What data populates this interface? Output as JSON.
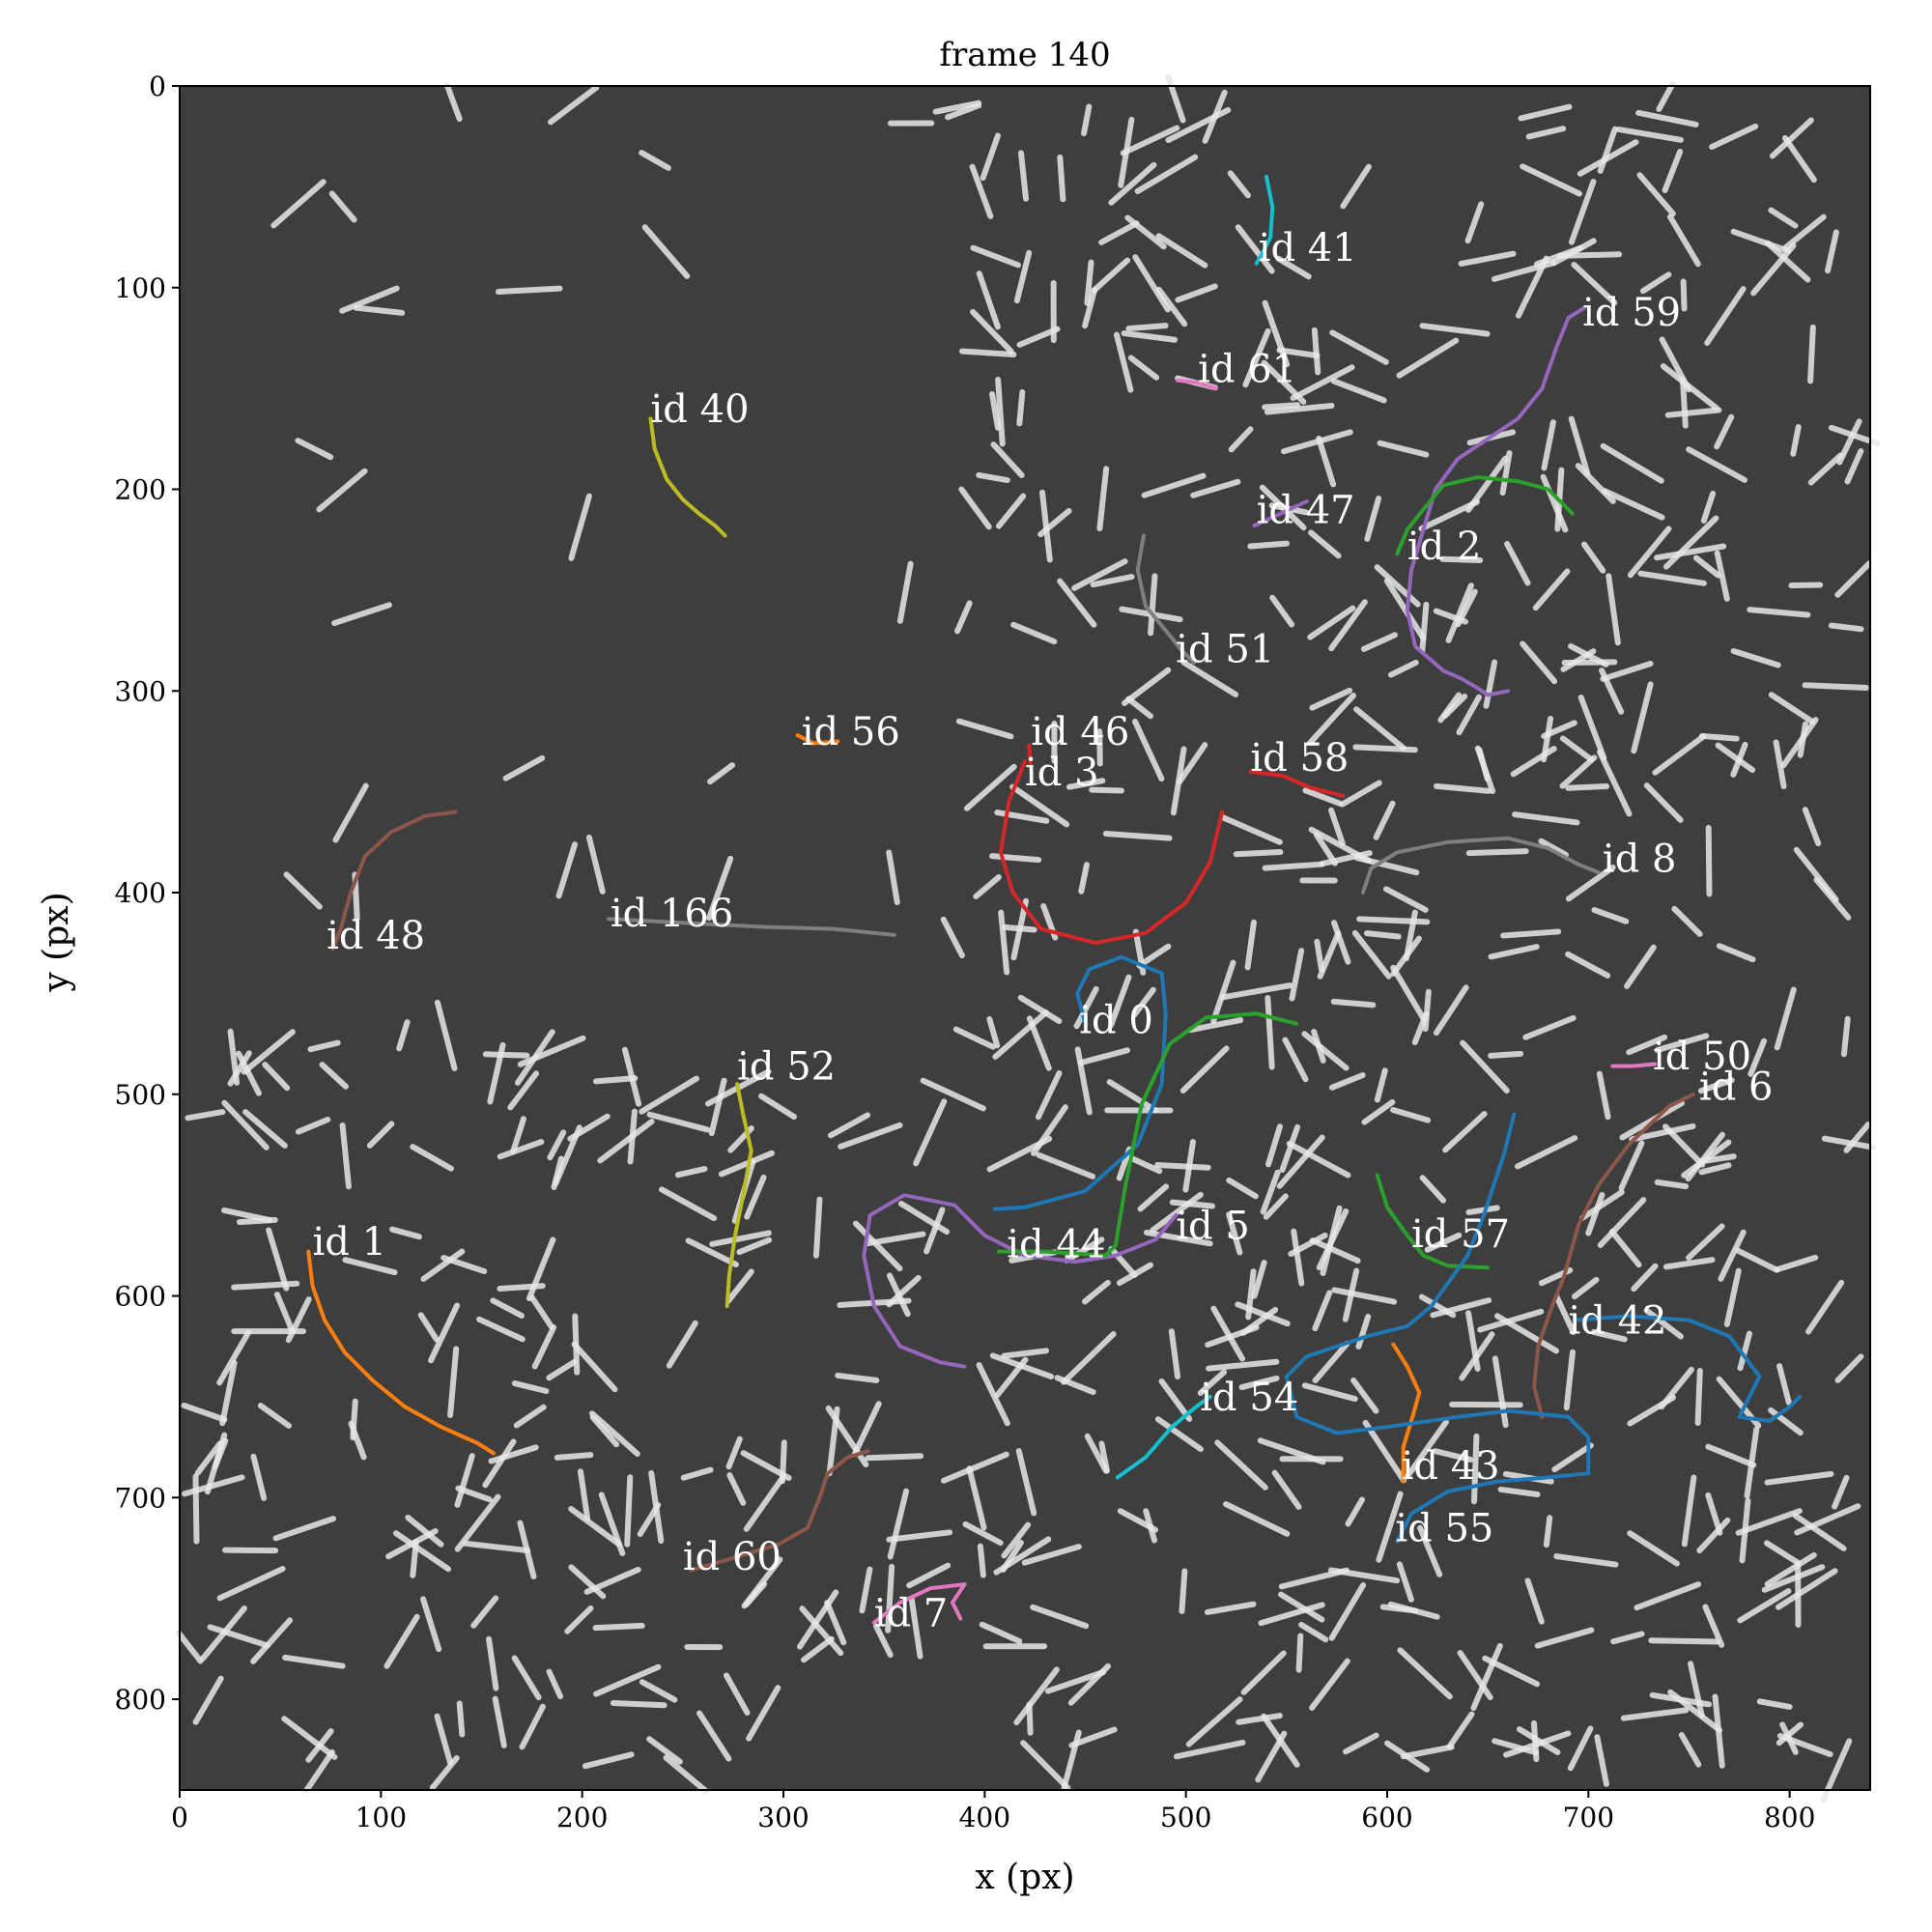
{
  "chart_data": {
    "type": "scatter",
    "title": "frame 140",
    "xlabel": "x (px)",
    "ylabel": "y (px)",
    "xlim": [
      0,
      840
    ],
    "ylim": [
      845,
      0
    ],
    "x_ticks": [
      0,
      100,
      200,
      300,
      400,
      500,
      600,
      700,
      800
    ],
    "y_ticks": [
      0,
      100,
      200,
      300,
      400,
      500,
      600,
      700,
      800
    ],
    "grid": false,
    "background": "#3e3e3e",
    "tracks": [
      {
        "label": "id 41",
        "color": "#17becf",
        "points": [
          [
            540,
            45
          ],
          [
            543,
            60
          ],
          [
            542,
            75
          ],
          [
            538,
            83
          ],
          [
            535,
            88
          ]
        ],
        "label_pos": [
          536,
          80
        ]
      },
      {
        "label": "id 59",
        "color": "#9467bd",
        "points": [
          [
            698,
            110
          ],
          [
            690,
            115
          ],
          [
            684,
            130
          ],
          [
            677,
            150
          ],
          [
            665,
            165
          ],
          [
            650,
            175
          ],
          [
            635,
            185
          ],
          [
            624,
            200
          ],
          [
            618,
            220
          ],
          [
            612,
            240
          ],
          [
            610,
            260
          ],
          [
            614,
            278
          ],
          [
            628,
            290
          ],
          [
            637,
            294
          ],
          [
            644,
            298
          ],
          [
            650,
            302
          ],
          [
            660,
            300
          ]
        ],
        "label_pos": [
          697,
          112
        ]
      },
      {
        "label": "id 61",
        "color": "#e377c2",
        "points": [
          [
            496,
            146
          ],
          [
            505,
            147
          ],
          [
            515,
            150
          ]
        ],
        "label_pos": [
          506,
          140
        ]
      },
      {
        "label": "id 40",
        "color": "#bcbd22",
        "points": [
          [
            234,
            165
          ],
          [
            236,
            180
          ],
          [
            242,
            195
          ],
          [
            250,
            205
          ],
          [
            258,
            212
          ],
          [
            266,
            218
          ],
          [
            271,
            223
          ]
        ],
        "label_pos": [
          234,
          160
        ]
      },
      {
        "label": "id 47",
        "color": "#9467bd",
        "points": [
          [
            534,
            218
          ],
          [
            545,
            213
          ],
          [
            560,
            206
          ]
        ],
        "label_pos": [
          535,
          210
        ]
      },
      {
        "label": "id 2",
        "color": "#2ca02c",
        "points": [
          [
            605,
            232
          ],
          [
            610,
            220
          ],
          [
            618,
            210
          ],
          [
            628,
            198
          ],
          [
            645,
            194
          ],
          [
            665,
            196
          ],
          [
            680,
            200
          ],
          [
            692,
            212
          ]
        ],
        "label_pos": [
          610,
          228
        ]
      },
      {
        "label": "id 51",
        "color": "#7f7f7f",
        "points": [
          [
            479,
            223
          ],
          [
            476,
            240
          ],
          [
            480,
            258
          ],
          [
            490,
            270
          ],
          [
            498,
            280
          ],
          [
            504,
            286
          ]
        ],
        "label_pos": [
          495,
          279
        ]
      },
      {
        "label": "id 56",
        "color": "#ff7f0e",
        "points": [
          [
            307,
            322
          ],
          [
            315,
            326
          ],
          [
            327,
            325
          ]
        ],
        "label_pos": [
          309,
          320
        ]
      },
      {
        "label": "id 46",
        "color": "#d62728",
        "points": [
          [
            422,
            327
          ],
          [
            423,
            340
          ]
        ],
        "label_pos": [
          423,
          320
        ]
      },
      {
        "label": "id 3",
        "color": "#d62728",
        "points": [
          [
            420,
            335
          ],
          [
            412,
            355
          ],
          [
            408,
            380
          ],
          [
            414,
            400
          ],
          [
            428,
            418
          ],
          [
            455,
            425
          ],
          [
            480,
            420
          ],
          [
            500,
            405
          ],
          [
            512,
            385
          ],
          [
            518,
            360
          ]
        ],
        "label_pos": [
          420,
          340
        ]
      },
      {
        "label": "id 58",
        "color": "#d62728",
        "points": [
          [
            532,
            340
          ],
          [
            548,
            342
          ],
          [
            562,
            348
          ],
          [
            578,
            352
          ]
        ],
        "label_pos": [
          532,
          333
        ]
      },
      {
        "label": "id 8",
        "color": "#7f7f7f",
        "points": [
          [
            588,
            400
          ],
          [
            592,
            388
          ],
          [
            605,
            380
          ],
          [
            630,
            375
          ],
          [
            660,
            373
          ],
          [
            680,
            378
          ],
          [
            695,
            386
          ],
          [
            705,
            390
          ]
        ],
        "label_pos": [
          707,
          383
        ]
      },
      {
        "label": "id 48",
        "color": "#8c564b",
        "points": [
          [
            137,
            360
          ],
          [
            122,
            362
          ],
          [
            105,
            370
          ],
          [
            92,
            382
          ],
          [
            85,
            400
          ],
          [
            80,
            418
          ],
          [
            76,
            428
          ]
        ],
        "label_pos": [
          73,
          421
        ]
      },
      {
        "label": "id 166",
        "color": "#7f7f7f",
        "points": [
          [
            213,
            413
          ],
          [
            250,
            415
          ],
          [
            290,
            417
          ],
          [
            325,
            418
          ],
          [
            355,
            421
          ]
        ],
        "label_pos": [
          214,
          410
        ]
      },
      {
        "label": "id 0",
        "color": "#1f77b4",
        "points": [
          [
            450,
            465
          ],
          [
            446,
            450
          ],
          [
            452,
            438
          ],
          [
            468,
            432
          ],
          [
            488,
            440
          ],
          [
            490,
            460
          ],
          [
            488,
            495
          ],
          [
            476,
            525
          ],
          [
            450,
            548
          ],
          [
            420,
            556
          ],
          [
            405,
            557
          ]
        ],
        "label_pos": [
          447,
          463
        ]
      },
      {
        "label": "id 50",
        "color": "#e377c2",
        "points": [
          [
            712,
            486
          ],
          [
            722,
            486
          ],
          [
            733,
            485
          ]
        ],
        "label_pos": [
          732,
          481
        ]
      },
      {
        "label": "id 6",
        "color": "#8c564b",
        "points": [
          [
            752,
            500
          ],
          [
            740,
            506
          ],
          [
            720,
            525
          ],
          [
            705,
            545
          ],
          [
            695,
            565
          ],
          [
            688,
            590
          ],
          [
            682,
            605
          ],
          [
            675,
            625
          ],
          [
            673,
            645
          ],
          [
            677,
            660
          ]
        ],
        "label_pos": [
          755,
          496
        ]
      },
      {
        "label": "id 52",
        "color": "#bcbd22",
        "points": [
          [
            277,
            495
          ],
          [
            280,
            510
          ],
          [
            284,
            528
          ],
          [
            280,
            550
          ],
          [
            276,
            570
          ],
          [
            273,
            590
          ],
          [
            272,
            605
          ]
        ],
        "label_pos": [
          277,
          486
        ]
      },
      {
        "label": "id 5",
        "color": "#9467bd",
        "points": [
          [
            495,
            560
          ],
          [
            485,
            572
          ],
          [
            465,
            580
          ],
          [
            445,
            583
          ],
          [
            420,
            580
          ],
          [
            400,
            570
          ],
          [
            385,
            555
          ],
          [
            360,
            550
          ],
          [
            343,
            560
          ],
          [
            340,
            580
          ],
          [
            345,
            605
          ],
          [
            358,
            625
          ],
          [
            378,
            633
          ],
          [
            390,
            635
          ]
        ],
        "label_pos": [
          495,
          565
        ]
      },
      {
        "label": "id 44",
        "color": "#2ca02c",
        "points": [
          [
            407,
            578
          ],
          [
            430,
            578
          ],
          [
            460,
            580
          ],
          [
            465,
            575
          ],
          [
            470,
            545
          ],
          [
            478,
            505
          ],
          [
            492,
            475
          ],
          [
            510,
            462
          ],
          [
            535,
            460
          ],
          [
            555,
            465
          ]
        ],
        "label_pos": [
          411,
          574
        ]
      },
      {
        "label": "id 57",
        "color": "#2ca02c",
        "points": [
          [
            595,
            540
          ],
          [
            600,
            556
          ],
          [
            610,
            570
          ],
          [
            618,
            580
          ],
          [
            630,
            585
          ],
          [
            650,
            586
          ]
        ],
        "label_pos": [
          612,
          569
        ]
      },
      {
        "label": "id 42",
        "color": "#1f77b4",
        "points": [
          [
            693,
            612
          ],
          [
            720,
            610
          ],
          [
            750,
            612
          ],
          [
            770,
            620
          ],
          [
            785,
            640
          ],
          [
            775,
            660
          ],
          [
            790,
            662
          ],
          [
            800,
            655
          ],
          [
            805,
            650
          ]
        ],
        "label_pos": [
          690,
          612
        ]
      },
      {
        "label": "id 54",
        "color": "#17becf",
        "points": [
          [
            466,
            690
          ],
          [
            480,
            680
          ],
          [
            493,
            665
          ],
          [
            505,
            655
          ],
          [
            512,
            650
          ]
        ],
        "label_pos": [
          507,
          650
        ]
      },
      {
        "label": "id 43",
        "color": "#ff7f0e",
        "points": [
          [
            603,
            624
          ],
          [
            610,
            635
          ],
          [
            616,
            648
          ],
          [
            612,
            662
          ],
          [
            608,
            675
          ],
          [
            608,
            692
          ]
        ],
        "label_pos": [
          607,
          684
        ]
      },
      {
        "label": "id 55",
        "color": "#1f77b4",
        "points": [
          [
            605,
            722
          ],
          [
            612,
            708
          ],
          [
            630,
            697
          ],
          [
            655,
            692
          ],
          [
            680,
            690
          ],
          [
            700,
            688
          ],
          [
            700,
            670
          ],
          [
            690,
            660
          ],
          [
            660,
            657
          ],
          [
            635,
            660
          ],
          [
            600,
            665
          ],
          [
            575,
            668
          ],
          [
            555,
            660
          ],
          [
            550,
            640
          ],
          [
            560,
            630
          ],
          [
            590,
            620
          ],
          [
            610,
            615
          ],
          [
            622,
            605
          ],
          [
            640,
            580
          ],
          [
            648,
            560
          ],
          [
            658,
            530
          ],
          [
            663,
            510
          ]
        ],
        "label_pos": [
          604,
          715
        ]
      },
      {
        "label": "id 1",
        "color": "#ff7f0e",
        "points": [
          [
            64,
            578
          ],
          [
            66,
            595
          ],
          [
            72,
            612
          ],
          [
            82,
            628
          ],
          [
            96,
            642
          ],
          [
            112,
            655
          ],
          [
            130,
            665
          ],
          [
            148,
            673
          ],
          [
            156,
            678
          ]
        ],
        "label_pos": [
          66,
          573
        ]
      },
      {
        "label": "id 60",
        "color": "#8c564b",
        "points": [
          [
            254,
            736
          ],
          [
            275,
            730
          ],
          [
            298,
            723
          ],
          [
            312,
            715
          ],
          [
            318,
            700
          ],
          [
            322,
            688
          ],
          [
            332,
            680
          ],
          [
            342,
            677
          ]
        ],
        "label_pos": [
          250,
          729
        ]
      },
      {
        "label": "id 7",
        "color": "#e377c2",
        "points": [
          [
            345,
            762
          ],
          [
            358,
            752
          ],
          [
            373,
            745
          ],
          [
            390,
            743
          ],
          [
            384,
            752
          ],
          [
            388,
            760
          ]
        ],
        "label_pos": [
          345,
          757
        ]
      }
    ]
  }
}
